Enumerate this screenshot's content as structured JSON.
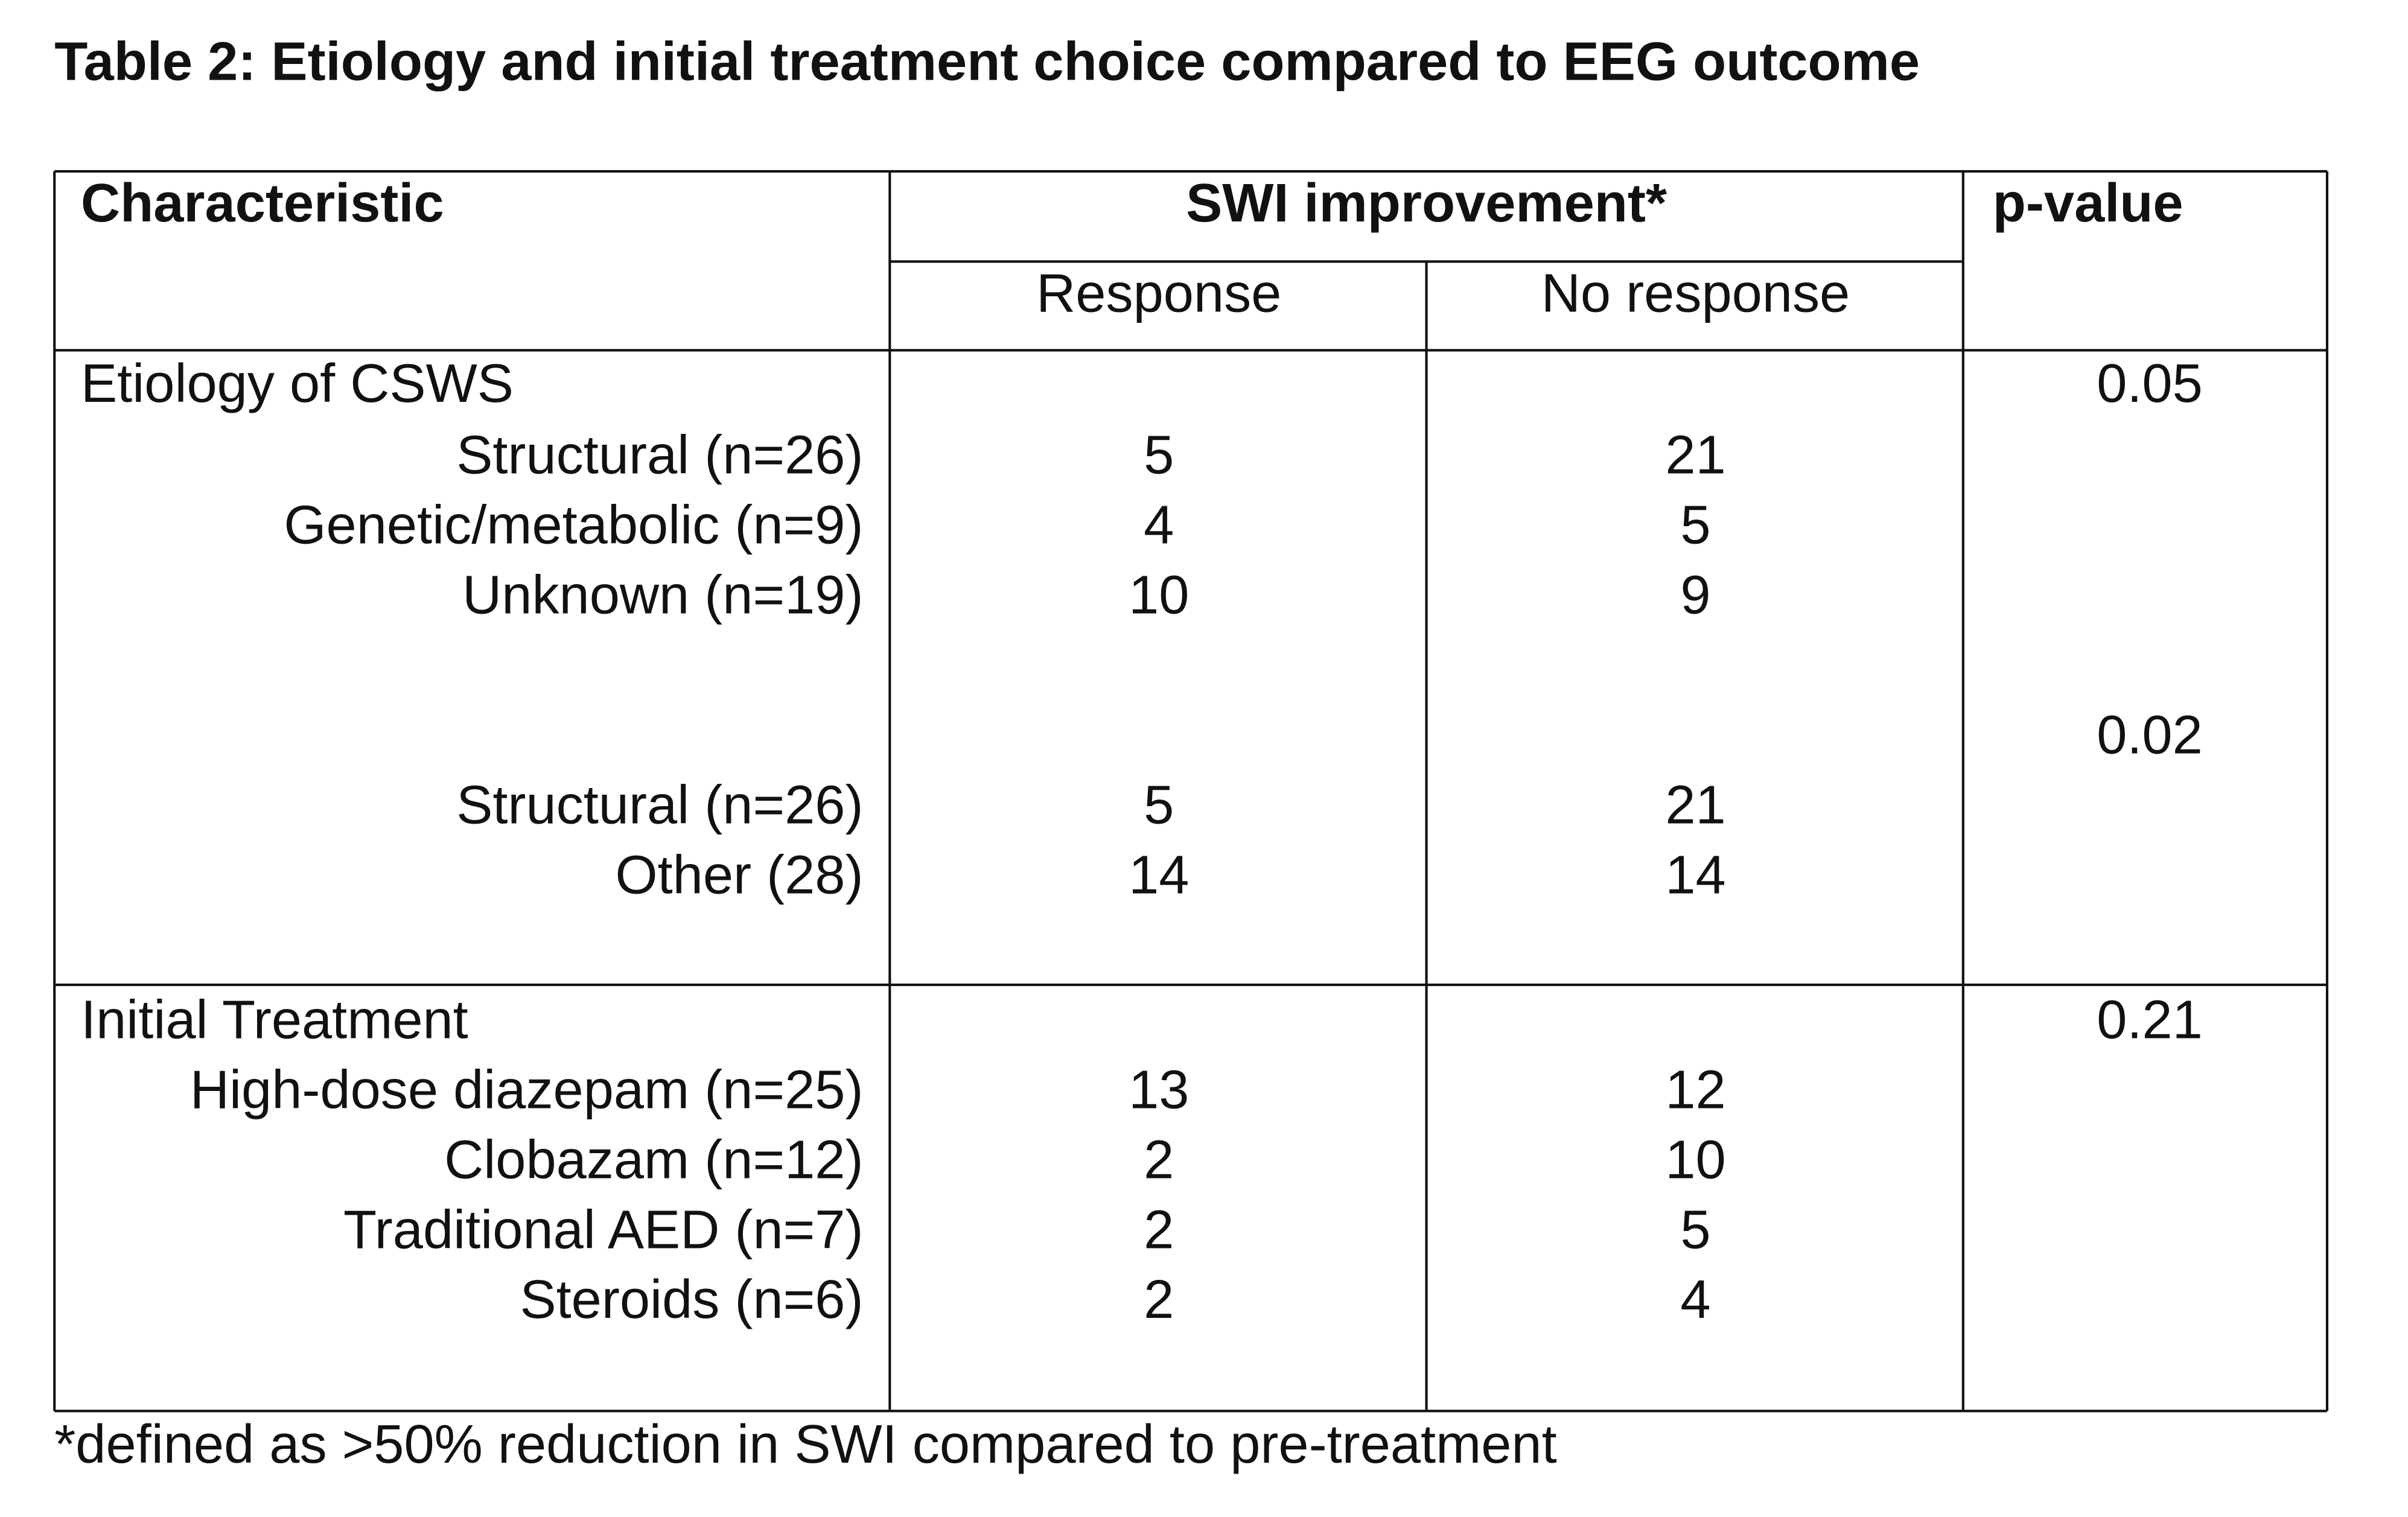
{
  "title": "Table 2: Etiology and initial treatment choice compared to EEG outcome",
  "table": {
    "header": {
      "characteristic": "Characteristic",
      "group": "SWI improvement*",
      "p_value": "p-value",
      "response": "Response",
      "no_response": "No response"
    },
    "sections": [
      {
        "label": "Etiology of CSWS",
        "p_value": 0.05,
        "rows": [
          [
            "Structural (n=26)",
            5,
            21
          ],
          [
            "Genetic/metabolic (n=9)",
            4,
            5
          ],
          [
            "Unknown (n=19)",
            10,
            9
          ]
        ]
      },
      {
        "p_value": 0.02,
        "rows": [
          [
            "Structural (n=26)",
            5,
            21
          ],
          [
            "Other (28)",
            14,
            14
          ]
        ]
      },
      {
        "label": "Initial Treatment",
        "p_value": 0.21,
        "rows": [
          [
            "High-dose diazepam (n=25)",
            13,
            12
          ],
          [
            "Clobazam (n=12)",
            2,
            10
          ],
          [
            "Traditional AED (n=7)",
            2,
            5
          ],
          [
            "Steroids (n=6)",
            2,
            4
          ]
        ]
      }
    ]
  },
  "footnote": "*defined as >50% reduction in SWI compared to pre-treatment"
}
